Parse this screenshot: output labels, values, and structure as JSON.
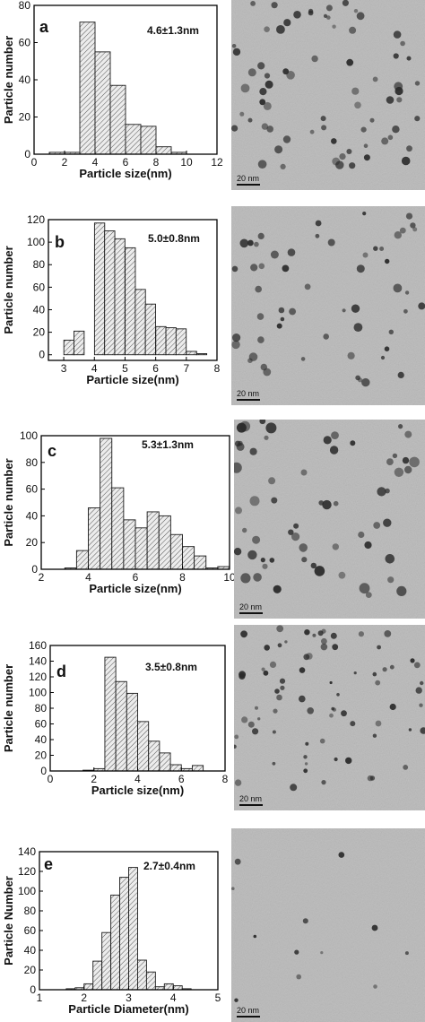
{
  "chart_data": [
    {
      "panel": "a",
      "type": "bar",
      "annotation": "4.6±1.3nm",
      "xlabel": "Particle size(nm)",
      "ylabel": "Particle number",
      "xlim": [
        0,
        12
      ],
      "ylim": [
        0,
        80
      ],
      "xticks": [
        0,
        2,
        4,
        6,
        8,
        10,
        12
      ],
      "yticks": [
        0,
        20,
        40,
        60,
        80
      ],
      "bin_width": 1,
      "bins": [
        {
          "x": 1.5,
          "value": 1
        },
        {
          "x": 2.5,
          "value": 1
        },
        {
          "x": 3.5,
          "value": 71
        },
        {
          "x": 4.5,
          "value": 55
        },
        {
          "x": 5.5,
          "value": 37
        },
        {
          "x": 6.5,
          "value": 16
        },
        {
          "x": 7.5,
          "value": 15
        },
        {
          "x": 8.5,
          "value": 4
        },
        {
          "x": 9.5,
          "value": 1
        }
      ],
      "scale_bar": "20 nm"
    },
    {
      "panel": "b",
      "type": "bar",
      "annotation": "5.0±0.8nm",
      "xlabel": "Particle size(nm)",
      "ylabel": "Particle number",
      "xlim": [
        2.5,
        8
      ],
      "ylim": [
        -5,
        120
      ],
      "xticks": [
        3,
        4,
        5,
        6,
        7,
        8
      ],
      "yticks": [
        0,
        20,
        40,
        60,
        80,
        100,
        120
      ],
      "bin_width": 0.333,
      "bins": [
        {
          "x": 3.17,
          "value": 13
        },
        {
          "x": 3.5,
          "value": 21
        },
        {
          "x": 3.83,
          "value": 0
        },
        {
          "x": 4.17,
          "value": 117
        },
        {
          "x": 4.5,
          "value": 110
        },
        {
          "x": 4.83,
          "value": 103
        },
        {
          "x": 5.17,
          "value": 95
        },
        {
          "x": 5.5,
          "value": 58
        },
        {
          "x": 5.83,
          "value": 45
        },
        {
          "x": 6.17,
          "value": 25
        },
        {
          "x": 6.5,
          "value": 24
        },
        {
          "x": 6.83,
          "value": 23
        },
        {
          "x": 7.17,
          "value": 3
        },
        {
          "x": 7.5,
          "value": 1
        }
      ],
      "scale_bar": "20 nm"
    },
    {
      "panel": "c",
      "type": "bar",
      "annotation": "5.3±1.3nm",
      "xlabel": "Particle size(nm)",
      "ylabel": "Particle number",
      "xlim": [
        2,
        10
      ],
      "ylim": [
        0,
        100
      ],
      "xticks": [
        2,
        4,
        6,
        8,
        10
      ],
      "yticks": [
        0,
        20,
        40,
        60,
        80,
        100
      ],
      "bin_width": 0.5,
      "bins": [
        {
          "x": 3.25,
          "value": 1
        },
        {
          "x": 3.75,
          "value": 14
        },
        {
          "x": 4.25,
          "value": 46
        },
        {
          "x": 4.75,
          "value": 98
        },
        {
          "x": 5.25,
          "value": 61
        },
        {
          "x": 5.75,
          "value": 37
        },
        {
          "x": 6.25,
          "value": 31
        },
        {
          "x": 6.75,
          "value": 43
        },
        {
          "x": 7.25,
          "value": 40
        },
        {
          "x": 7.75,
          "value": 26
        },
        {
          "x": 8.25,
          "value": 17
        },
        {
          "x": 8.75,
          "value": 10
        },
        {
          "x": 9.25,
          "value": 1
        },
        {
          "x": 9.75,
          "value": 2
        }
      ],
      "scale_bar": "20 nm"
    },
    {
      "panel": "d",
      "type": "bar",
      "annotation": "3.5±0.8nm",
      "xlabel": "Particle size(nm)",
      "ylabel": "Particle number",
      "xlim": [
        0,
        8
      ],
      "ylim": [
        0,
        160
      ],
      "xticks": [
        0,
        2,
        4,
        6,
        8
      ],
      "yticks": [
        0,
        20,
        40,
        60,
        80,
        100,
        120,
        140,
        160
      ],
      "bin_width": 0.5,
      "bins": [
        {
          "x": 1.75,
          "value": 1
        },
        {
          "x": 2.25,
          "value": 3
        },
        {
          "x": 2.75,
          "value": 145
        },
        {
          "x": 3.25,
          "value": 114
        },
        {
          "x": 3.75,
          "value": 99
        },
        {
          "x": 4.25,
          "value": 63
        },
        {
          "x": 4.75,
          "value": 38
        },
        {
          "x": 5.25,
          "value": 23
        },
        {
          "x": 5.75,
          "value": 8
        },
        {
          "x": 6.25,
          "value": 3
        },
        {
          "x": 6.75,
          "value": 7
        }
      ],
      "scale_bar": "20 nm"
    },
    {
      "panel": "e",
      "type": "bar",
      "annotation": "2.7±0.4nm",
      "xlabel": "Particle Diameter(nm)",
      "ylabel": "Particle Number",
      "xlim": [
        1,
        5
      ],
      "ylim": [
        0,
        140
      ],
      "xticks": [
        1,
        2,
        3,
        4,
        5
      ],
      "yticks": [
        0,
        20,
        40,
        60,
        80,
        100,
        120,
        140
      ],
      "bin_width": 0.2,
      "bins": [
        {
          "x": 1.7,
          "value": 1
        },
        {
          "x": 1.9,
          "value": 2
        },
        {
          "x": 2.1,
          "value": 6
        },
        {
          "x": 2.3,
          "value": 29
        },
        {
          "x": 2.5,
          "value": 58
        },
        {
          "x": 2.7,
          "value": 96
        },
        {
          "x": 2.9,
          "value": 114
        },
        {
          "x": 3.1,
          "value": 124
        },
        {
          "x": 3.3,
          "value": 30
        },
        {
          "x": 3.5,
          "value": 18
        },
        {
          "x": 3.7,
          "value": 3
        },
        {
          "x": 3.9,
          "value": 6
        },
        {
          "x": 4.1,
          "value": 4
        },
        {
          "x": 4.3,
          "value": 1
        }
      ],
      "scale_bar": "20 nm"
    }
  ],
  "colors": {
    "bar_fill": "#d0d0d0",
    "bar_stroke": "#1a1a1a",
    "axis": "#000000",
    "tem_background": "#b9b9b9",
    "particle": "#2a2a2a"
  }
}
